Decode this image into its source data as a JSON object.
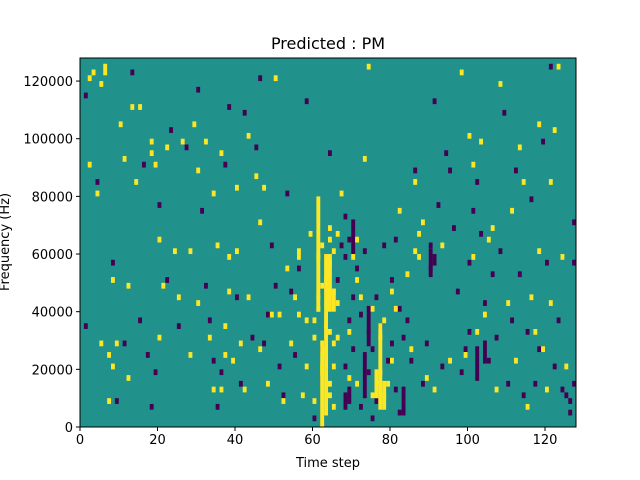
{
  "chart_data": {
    "type": "heatmap",
    "title": "Predicted : PM",
    "xlabel": "Time step",
    "ylabel": "Frequency (Hz)",
    "xlim": [
      0,
      128
    ],
    "ylim": [
      0,
      128000
    ],
    "x_ticks": [
      0,
      20,
      40,
      60,
      80,
      100,
      120
    ],
    "y_ticks": [
      0,
      20000,
      40000,
      60000,
      80000,
      100000,
      120000
    ],
    "x_tick_labels": [
      "0",
      "20",
      "40",
      "60",
      "80",
      "100",
      "120"
    ],
    "y_tick_labels": [
      "0",
      "20000",
      "40000",
      "60000",
      "80000",
      "100000",
      "120000"
    ],
    "grid": false,
    "colormap": "viridis",
    "value_levels": [
      -1,
      0,
      1
    ],
    "value_colors": {
      "-1": "#440154",
      "0": "#21918c",
      "1": "#fde725"
    },
    "background_value": 0,
    "freq_bin_hz": 2000,
    "time_bin": 1,
    "high_cells": [
      [
        2,
        120000
      ],
      [
        2,
        90000
      ],
      [
        3,
        122000
      ],
      [
        4,
        80000
      ],
      [
        5,
        28000
      ],
      [
        5,
        118000
      ],
      [
        6,
        122000
      ],
      [
        6,
        124000
      ],
      [
        7,
        8000
      ],
      [
        7,
        24000
      ],
      [
        8,
        20000
      ],
      [
        8,
        50000
      ],
      [
        9,
        28000
      ],
      [
        10,
        104000
      ],
      [
        11,
        92000
      ],
      [
        12,
        16000
      ],
      [
        12,
        48000
      ],
      [
        13,
        110000
      ],
      [
        14,
        84000
      ],
      [
        15,
        110000
      ],
      [
        18,
        98000
      ],
      [
        18,
        94000
      ],
      [
        19,
        90000
      ],
      [
        20,
        30000
      ],
      [
        20,
        64000
      ],
      [
        21,
        48000
      ],
      [
        22,
        96000
      ],
      [
        24,
        60000
      ],
      [
        25,
        44000
      ],
      [
        26,
        98000
      ],
      [
        28,
        60000
      ],
      [
        28,
        24000
      ],
      [
        29,
        104000
      ],
      [
        30,
        42000
      ],
      [
        30,
        88000
      ],
      [
        32,
        98000
      ],
      [
        33,
        30000
      ],
      [
        34,
        12000
      ],
      [
        34,
        80000
      ],
      [
        35,
        62000
      ],
      [
        36,
        12000
      ],
      [
        36,
        94000
      ],
      [
        37,
        24000
      ],
      [
        37,
        34000
      ],
      [
        38,
        46000
      ],
      [
        38,
        58000
      ],
      [
        39,
        22000
      ],
      [
        40,
        82000
      ],
      [
        40,
        60000
      ],
      [
        41,
        28000
      ],
      [
        42,
        12000
      ],
      [
        43,
        44000
      ],
      [
        43,
        100000
      ],
      [
        45,
        86000
      ],
      [
        46,
        70000
      ],
      [
        46,
        26000
      ],
      [
        47,
        82000
      ],
      [
        48,
        14000
      ],
      [
        49,
        38000
      ],
      [
        50,
        120000
      ],
      [
        51,
        38000
      ],
      [
        52,
        8000
      ],
      [
        53,
        54000
      ],
      [
        54,
        28000
      ],
      [
        55,
        44000
      ],
      [
        56,
        58000
      ],
      [
        56,
        38000
      ],
      [
        56,
        60000
      ],
      [
        57,
        10000
      ],
      [
        58,
        20000
      ],
      [
        58,
        36000
      ],
      [
        59,
        66000
      ],
      [
        60,
        8000
      ],
      [
        60,
        30000
      ],
      [
        60,
        36000
      ],
      [
        61,
        40000
      ],
      [
        61,
        44000
      ],
      [
        61,
        58000
      ],
      [
        62,
        18000
      ],
      [
        62,
        48000
      ],
      [
        62,
        62000
      ],
      [
        62,
        20000
      ],
      [
        63,
        24000
      ],
      [
        63,
        26000
      ],
      [
        63,
        34000
      ],
      [
        63,
        50000
      ],
      [
        64,
        10000
      ],
      [
        64,
        14000
      ],
      [
        64,
        32000
      ],
      [
        64,
        56000
      ],
      [
        64,
        64000
      ],
      [
        64,
        68000
      ],
      [
        65,
        6000
      ],
      [
        65,
        20000
      ],
      [
        65,
        28000
      ],
      [
        65,
        46000
      ],
      [
        65,
        60000
      ],
      [
        66,
        30000
      ],
      [
        66,
        42000
      ],
      [
        66,
        66000
      ],
      [
        67,
        80000
      ],
      [
        69,
        16000
      ],
      [
        69,
        32000
      ],
      [
        70,
        58000
      ],
      [
        71,
        64000
      ],
      [
        71,
        50000
      ],
      [
        71,
        14000
      ],
      [
        72,
        44000
      ],
      [
        73,
        92000
      ],
      [
        74,
        124000
      ],
      [
        75,
        10000
      ],
      [
        75,
        40000
      ],
      [
        76,
        14000
      ],
      [
        77,
        18000
      ],
      [
        77,
        8000
      ],
      [
        77,
        30000
      ],
      [
        78,
        10000
      ],
      [
        78,
        36000
      ],
      [
        79,
        14000
      ],
      [
        80,
        46000
      ],
      [
        80,
        22000
      ],
      [
        81,
        40000
      ],
      [
        82,
        74000
      ],
      [
        84,
        52000
      ],
      [
        85,
        26000
      ],
      [
        86,
        60000
      ],
      [
        86,
        84000
      ],
      [
        87,
        66000
      ],
      [
        87,
        58000
      ],
      [
        88,
        70000
      ],
      [
        89,
        16000
      ],
      [
        91,
        12000
      ],
      [
        93,
        62000
      ],
      [
        95,
        22000
      ],
      [
        98,
        122000
      ],
      [
        99,
        24000
      ],
      [
        100,
        100000
      ],
      [
        101,
        58000
      ],
      [
        101,
        90000
      ],
      [
        102,
        32000
      ],
      [
        103,
        98000
      ],
      [
        104,
        38000
      ],
      [
        105,
        64000
      ],
      [
        106,
        68000
      ],
      [
        107,
        12000
      ],
      [
        108,
        118000
      ],
      [
        110,
        42000
      ],
      [
        111,
        74000
      ],
      [
        112,
        22000
      ],
      [
        113,
        96000
      ],
      [
        114,
        84000
      ],
      [
        115,
        6000
      ],
      [
        116,
        44000
      ],
      [
        117,
        32000
      ],
      [
        118,
        104000
      ],
      [
        118,
        60000
      ],
      [
        119,
        26000
      ],
      [
        120,
        12000
      ],
      [
        121,
        84000
      ],
      [
        121,
        42000
      ],
      [
        122,
        102000
      ],
      [
        123,
        124000
      ],
      [
        124,
        58000
      ],
      [
        125,
        20000
      ]
    ],
    "low_cells": [
      [
        1,
        114000
      ],
      [
        1,
        34000
      ],
      [
        4,
        84000
      ],
      [
        8,
        56000
      ],
      [
        9,
        8000
      ],
      [
        11,
        28000
      ],
      [
        13,
        122000
      ],
      [
        15,
        36000
      ],
      [
        16,
        90000
      ],
      [
        17,
        24000
      ],
      [
        18,
        6000
      ],
      [
        19,
        18000
      ],
      [
        20,
        76000
      ],
      [
        22,
        50000
      ],
      [
        23,
        102000
      ],
      [
        25,
        34000
      ],
      [
        27,
        96000
      ],
      [
        30,
        116000
      ],
      [
        31,
        74000
      ],
      [
        32,
        48000
      ],
      [
        33,
        36000
      ],
      [
        34,
        22000
      ],
      [
        35,
        6000
      ],
      [
        36,
        18000
      ],
      [
        37,
        90000
      ],
      [
        38,
        110000
      ],
      [
        40,
        44000
      ],
      [
        41,
        14000
      ],
      [
        42,
        108000
      ],
      [
        44,
        30000
      ],
      [
        45,
        96000
      ],
      [
        46,
        120000
      ],
      [
        47,
        28000
      ],
      [
        48,
        38000
      ],
      [
        49,
        62000
      ],
      [
        50,
        48000
      ],
      [
        51,
        20000
      ],
      [
        52,
        10000
      ],
      [
        53,
        80000
      ],
      [
        54,
        46000
      ],
      [
        55,
        24000
      ],
      [
        56,
        54000
      ],
      [
        58,
        112000
      ],
      [
        60,
        2000
      ],
      [
        62,
        26000
      ],
      [
        64,
        94000
      ],
      [
        66,
        50000
      ],
      [
        67,
        62000
      ],
      [
        68,
        72000
      ],
      [
        68,
        58000
      ],
      [
        68,
        20000
      ],
      [
        69,
        36000
      ],
      [
        69,
        64000
      ],
      [
        70,
        44000
      ],
      [
        70,
        26000
      ],
      [
        71,
        54000
      ],
      [
        72,
        6000
      ],
      [
        72,
        38000
      ],
      [
        73,
        60000
      ],
      [
        74,
        18000
      ],
      [
        74,
        32000
      ],
      [
        75,
        26000
      ],
      [
        75,
        2000
      ],
      [
        76,
        44000
      ],
      [
        76,
        8000
      ],
      [
        77,
        34000
      ],
      [
        78,
        62000
      ],
      [
        79,
        22000
      ],
      [
        80,
        28000
      ],
      [
        80,
        50000
      ],
      [
        81,
        12000
      ],
      [
        81,
        64000
      ],
      [
        82,
        40000
      ],
      [
        82,
        4000
      ],
      [
        83,
        30000
      ],
      [
        84,
        36000
      ],
      [
        85,
        22000
      ],
      [
        86,
        88000
      ],
      [
        88,
        14000
      ],
      [
        89,
        28000
      ],
      [
        90,
        62000
      ],
      [
        90,
        54000
      ],
      [
        91,
        112000
      ],
      [
        92,
        76000
      ],
      [
        93,
        20000
      ],
      [
        94,
        94000
      ],
      [
        95,
        88000
      ],
      [
        96,
        68000
      ],
      [
        97,
        46000
      ],
      [
        98,
        18000
      ],
      [
        99,
        26000
      ],
      [
        100,
        32000
      ],
      [
        100,
        56000
      ],
      [
        101,
        74000
      ],
      [
        102,
        84000
      ],
      [
        103,
        66000
      ],
      [
        104,
        42000
      ],
      [
        105,
        22000
      ],
      [
        106,
        52000
      ],
      [
        107,
        30000
      ],
      [
        108,
        60000
      ],
      [
        109,
        108000
      ],
      [
        110,
        14000
      ],
      [
        111,
        36000
      ],
      [
        112,
        88000
      ],
      [
        113,
        52000
      ],
      [
        114,
        10000
      ],
      [
        115,
        32000
      ],
      [
        116,
        78000
      ],
      [
        117,
        14000
      ],
      [
        118,
        26000
      ],
      [
        119,
        98000
      ],
      [
        120,
        56000
      ],
      [
        121,
        124000
      ],
      [
        122,
        20000
      ],
      [
        123,
        36000
      ],
      [
        124,
        12000
      ],
      [
        125,
        10000
      ],
      [
        126,
        8000
      ],
      [
        127,
        70000
      ],
      [
        127,
        14000
      ],
      [
        126,
        4000
      ],
      [
        127,
        56000
      ]
    ],
    "high_spans": [
      [
        61,
        40000,
        80000
      ],
      [
        62,
        0,
        30000
      ],
      [
        63,
        4000,
        60000
      ],
      [
        64,
        40000,
        60000
      ],
      [
        65,
        40000,
        48000
      ],
      [
        77,
        6000,
        36000
      ],
      [
        76,
        10000,
        20000
      ],
      [
        78,
        6000,
        16000
      ]
    ],
    "low_spans": [
      [
        68,
        6000,
        12000
      ],
      [
        69,
        8000,
        14000
      ],
      [
        70,
        60000,
        72000
      ],
      [
        73,
        10000,
        26000
      ],
      [
        74,
        28000,
        42000
      ],
      [
        83,
        4000,
        14000
      ],
      [
        90,
        52000,
        62000
      ],
      [
        91,
        56000,
        60000
      ],
      [
        102,
        16000,
        28000
      ],
      [
        104,
        22000,
        30000
      ]
    ]
  }
}
